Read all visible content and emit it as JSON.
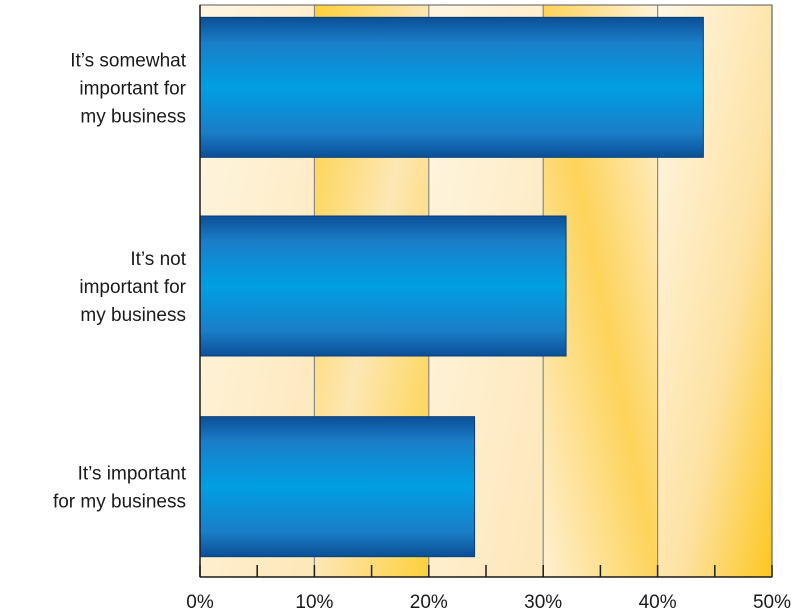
{
  "chart_data": {
    "type": "bar",
    "orientation": "horizontal",
    "title": "",
    "xlabel": "",
    "ylabel": "",
    "categories": [
      [
        "It’s somewhat",
        "important for",
        "my business"
      ],
      [
        "It’s not",
        "important for",
        "my business"
      ],
      [
        "It’s important",
        "for my business"
      ]
    ],
    "values": [
      44,
      32,
      24
    ],
    "unit": "%",
    "xlim": [
      0,
      50
    ],
    "x_ticks": [
      0,
      10,
      20,
      30,
      40,
      50
    ],
    "x_tick_labels": [
      "0%",
      "10%",
      "20%",
      "30%",
      "40%",
      "50%"
    ],
    "grid": true,
    "legend": "none",
    "colors": {
      "bar_dark": "#0b4f96",
      "bar_mid": "#1a7ec8",
      "bar_light": "#009fe3",
      "band_light": "#fdefcf",
      "band_gold": "#fed043",
      "gridline": "#8a8a8a",
      "axis": "#1a1a1a"
    }
  }
}
